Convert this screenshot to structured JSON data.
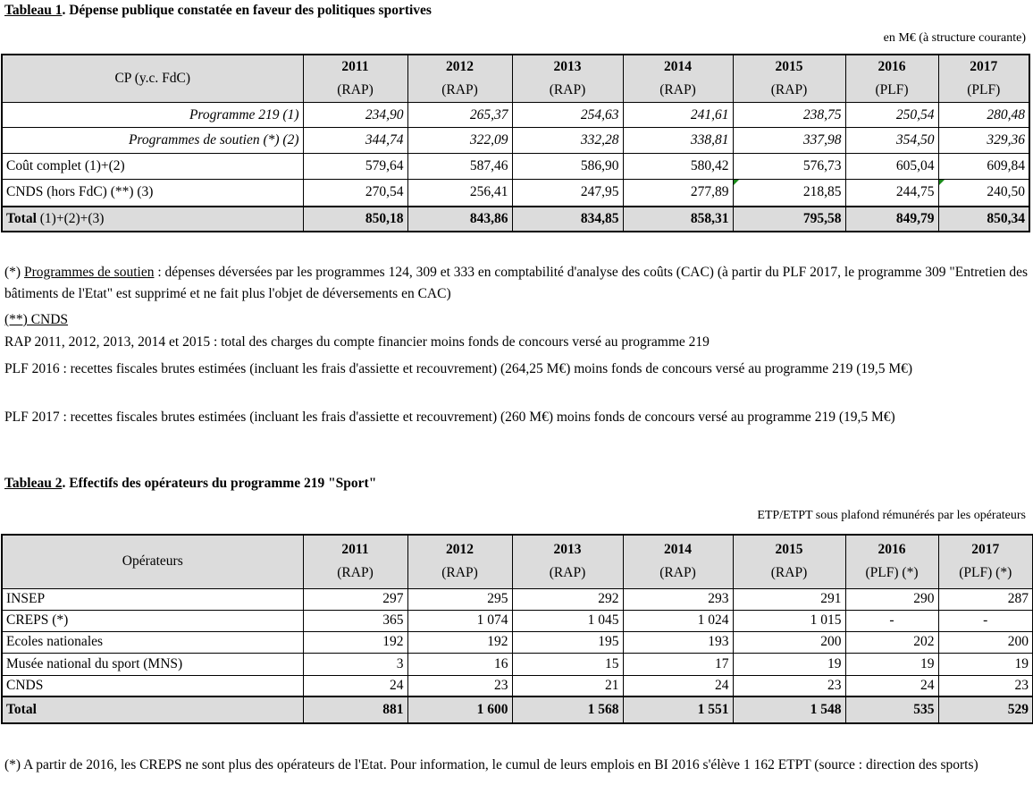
{
  "table1": {
    "title_prefix": "Tableau 1",
    "title_rest": ". Dépense publique constatée en faveur des politiques sportives",
    "unit": "en M€ (à structure courante)",
    "corner": "CP (y.c. FdC)",
    "columns": [
      {
        "year": "2011",
        "src": "(RAP)"
      },
      {
        "year": "2012",
        "src": "(RAP)"
      },
      {
        "year": "2013",
        "src": "(RAP)"
      },
      {
        "year": "2014",
        "src": "(RAP)"
      },
      {
        "year": "2015",
        "src": "(RAP)"
      },
      {
        "year": "2016",
        "src": "(PLF)"
      },
      {
        "year": "2017",
        "src": "(PLF)"
      }
    ],
    "rows": [
      {
        "label": "Programme 219 (1)",
        "values": [
          "234,90",
          "265,37",
          "254,63",
          "241,61",
          "238,75",
          "250,54",
          "280,48"
        ]
      },
      {
        "label": "Programmes de soutien (*) (2)",
        "values": [
          "344,74",
          "322,09",
          "332,28",
          "338,81",
          "337,98",
          "354,50",
          "329,36"
        ]
      },
      {
        "label": "Coût complet (1)+(2)",
        "values": [
          "579,64",
          "587,46",
          "586,90",
          "580,42",
          "576,73",
          "605,04",
          "609,84"
        ]
      },
      {
        "label": "CNDS (hors FdC) (**) (3)",
        "values": [
          "270,54",
          "256,41",
          "247,95",
          "277,89",
          "218,85",
          "244,75",
          "240,50"
        ]
      }
    ],
    "total": {
      "label_bold": "Total",
      "label_rest": " (1)+(2)+(3)",
      "values": [
        "850,18",
        "843,86",
        "834,85",
        "858,31",
        "795,58",
        "849,79",
        "850,34"
      ]
    }
  },
  "notes1": {
    "soutien_label": "Programmes de soutien",
    "soutien_prefix": "(*) ",
    "soutien_text": " : dépenses déversées par les programmes 124, 309 et 333 en comptabilité d'analyse des coûts (CAC) (à partir du PLF 2017, le programme 309 \"Entretien des bâtiments de l'Etat\" est supprimé et ne fait plus l'objet de déversements en CAC)",
    "cnds_heading": "(**) CNDS",
    "lines": [
      "RAP 2011, 2012, 2013, 2014 et 2015 : total des charges du compte financier moins fonds de concours versé au programme 219",
      "PLF 2016 : recettes fiscales brutes estimées (incluant les frais d'assiette et recouvrement) (264,25 M€) moins fonds de concours versé au programme 219 (19,5 M€)",
      "PLF 2017 : recettes fiscales brutes estimées (incluant les frais d'assiette et recouvrement) (260 M€) moins fonds de concours versé au programme 219 (19,5 M€)"
    ]
  },
  "table2": {
    "title_prefix": "Tableau 2",
    "title_rest": ". Effectifs des opérateurs du programme 219 \"Sport\"",
    "unit": "ETP/ETPT sous plafond rémunérés par les opérateurs",
    "corner": "Opérateurs",
    "columns": [
      {
        "year": "2011",
        "src": "(RAP)"
      },
      {
        "year": "2012",
        "src": "(RAP)"
      },
      {
        "year": "2013",
        "src": "(RAP)"
      },
      {
        "year": "2014",
        "src": "(RAP)"
      },
      {
        "year": "2015",
        "src": "(RAP)"
      },
      {
        "year": "2016",
        "src": "(PLF) (*)"
      },
      {
        "year": "2017",
        "src": "(PLF) (*)"
      }
    ],
    "rows": [
      {
        "label": "INSEP",
        "values": [
          "297",
          "295",
          "292",
          "293",
          "291",
          "290",
          "287"
        ]
      },
      {
        "label": "CREPS (*)",
        "values": [
          "365",
          "1 074",
          "1 045",
          "1 024",
          "1 015",
          "-",
          "-"
        ]
      },
      {
        "label": "Ecoles nationales",
        "values": [
          "192",
          "192",
          "195",
          "193",
          "200",
          "202",
          "200"
        ]
      },
      {
        "label": "Musée national du sport (MNS)",
        "values": [
          "3",
          "16",
          "15",
          "17",
          "19",
          "19",
          "19"
        ]
      },
      {
        "label": "CNDS",
        "values": [
          "24",
          "23",
          "21",
          "24",
          "23",
          "24",
          "23"
        ]
      }
    ],
    "total": {
      "label": "Total",
      "values": [
        "881",
        "1 600",
        "1 568",
        "1 551",
        "1 548",
        "535",
        "529"
      ]
    }
  },
  "notes2": {
    "text": "(*) A partir de 2016, les CREPS ne sont plus des opérateurs de l'Etat. Pour information, le cumul de leurs emplois en BI 2016 s'élève 1 162 ETPT (source : direction des sports)"
  },
  "colors": {
    "header_fill": "#dcdcdc",
    "comment_marker": "#1a8a1a"
  }
}
